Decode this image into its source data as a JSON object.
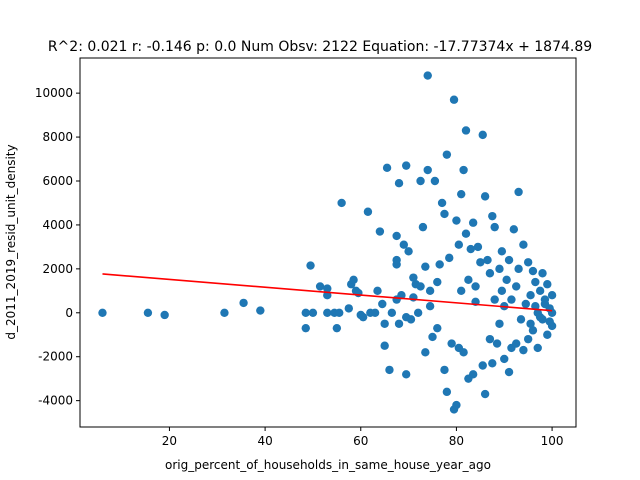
{
  "chart_data": {
    "type": "scatter",
    "title": "R^2: 0.021 r: -0.146 p: 0.0 Num Obsv: 2122 Equation: -17.77374x + 1874.89",
    "xlabel": "orig_percent_of_households_in_same_house_year_ago",
    "ylabel": "d_2011_2019_resid_unit_density",
    "xlim": [
      1.3,
      105.0
    ],
    "ylim": [
      -5200,
      11600
    ],
    "x_ticks": [
      20,
      40,
      60,
      80,
      100
    ],
    "y_ticks": [
      -4000,
      -2000,
      0,
      2000,
      4000,
      6000,
      8000,
      10000
    ],
    "grid": false,
    "legend": "none",
    "colors": {
      "points": "#1f77b4",
      "fit_line": "#ff0000"
    },
    "series": [
      {
        "values": [
          [
            6,
            0
          ],
          [
            15.5,
            0
          ],
          [
            19,
            -100
          ],
          [
            31.5,
            0
          ],
          [
            35.5,
            450
          ],
          [
            39,
            100
          ],
          [
            48.5,
            0
          ],
          [
            48.5,
            -700
          ],
          [
            49.5,
            2150
          ],
          [
            50,
            0
          ],
          [
            51.5,
            1200
          ],
          [
            53,
            1100
          ],
          [
            53,
            800
          ],
          [
            53,
            0
          ],
          [
            54.5,
            0
          ],
          [
            55,
            -700
          ],
          [
            55.5,
            0
          ],
          [
            56,
            5000
          ],
          [
            57.5,
            200
          ],
          [
            58,
            1300
          ],
          [
            58.5,
            1500
          ],
          [
            59,
            1000
          ],
          [
            59.5,
            900
          ],
          [
            60,
            -100
          ],
          [
            60.5,
            -200
          ],
          [
            61.5,
            4600
          ],
          [
            62,
            0
          ],
          [
            63,
            0
          ],
          [
            63.5,
            1000
          ],
          [
            64,
            3700
          ],
          [
            64.5,
            400
          ],
          [
            65,
            -500
          ],
          [
            65,
            -1500
          ],
          [
            65.5,
            6600
          ],
          [
            66,
            -2600
          ],
          [
            66.5,
            0
          ],
          [
            67.5,
            600
          ],
          [
            67.5,
            2200
          ],
          [
            67.5,
            2400
          ],
          [
            67.5,
            3500
          ],
          [
            68,
            5900
          ],
          [
            68,
            -500
          ],
          [
            68.5,
            800
          ],
          [
            69,
            3100
          ],
          [
            69.5,
            -2800
          ],
          [
            69.5,
            6700
          ],
          [
            69.5,
            -200
          ],
          [
            70,
            2800
          ],
          [
            70.5,
            -300
          ],
          [
            71,
            700
          ],
          [
            71,
            1600
          ],
          [
            71.5,
            1300
          ],
          [
            72,
            0
          ],
          [
            72.5,
            6000
          ],
          [
            72.5,
            1200
          ],
          [
            73,
            3900
          ],
          [
            73.5,
            -1800
          ],
          [
            73.5,
            2100
          ],
          [
            74,
            10800
          ],
          [
            74,
            6500
          ],
          [
            74.5,
            300
          ],
          [
            74.5,
            1000
          ],
          [
            75,
            -1100
          ],
          [
            75.5,
            6000
          ],
          [
            76,
            1400
          ],
          [
            76,
            -700
          ],
          [
            76.5,
            2200
          ],
          [
            77,
            5000
          ],
          [
            77.5,
            -2600
          ],
          [
            77.5,
            4500
          ],
          [
            78,
            7200
          ],
          [
            78,
            -3600
          ],
          [
            78.5,
            2500
          ],
          [
            79,
            -1400
          ],
          [
            79.5,
            -4400
          ],
          [
            79.5,
            9700
          ],
          [
            80,
            -4200
          ],
          [
            80,
            4200
          ],
          [
            80.5,
            3100
          ],
          [
            80.5,
            -1600
          ],
          [
            81,
            5400
          ],
          [
            81,
            1000
          ],
          [
            81.5,
            6500
          ],
          [
            81.5,
            -1800
          ],
          [
            82,
            3600
          ],
          [
            82,
            8300
          ],
          [
            82.5,
            -3000
          ],
          [
            82.5,
            1500
          ],
          [
            83,
            2900
          ],
          [
            83.5,
            -2800
          ],
          [
            83.5,
            4100
          ],
          [
            84,
            1200
          ],
          [
            84,
            500
          ],
          [
            84.5,
            3000
          ],
          [
            85,
            2300
          ],
          [
            85.5,
            -2400
          ],
          [
            85.5,
            8100
          ],
          [
            86,
            -3700
          ],
          [
            86,
            5300
          ],
          [
            86.5,
            2400
          ],
          [
            87,
            -1200
          ],
          [
            87,
            1800
          ],
          [
            87.5,
            4400
          ],
          [
            87.5,
            -2300
          ],
          [
            88,
            3900
          ],
          [
            88,
            600
          ],
          [
            88.5,
            -1400
          ],
          [
            89,
            2000
          ],
          [
            89,
            -500
          ],
          [
            89.5,
            2800
          ],
          [
            89.5,
            1000
          ],
          [
            90,
            300
          ],
          [
            90,
            -2100
          ],
          [
            90.5,
            1500
          ],
          [
            91,
            -2700
          ],
          [
            91,
            2400
          ],
          [
            91.5,
            -1600
          ],
          [
            91.5,
            600
          ],
          [
            92,
            3800
          ],
          [
            92.5,
            1200
          ],
          [
            92.5,
            -1400
          ],
          [
            93,
            2000
          ],
          [
            93,
            5500
          ],
          [
            93.5,
            -300
          ],
          [
            94,
            3100
          ],
          [
            94,
            -1700
          ],
          [
            94.5,
            400
          ],
          [
            95,
            -1200
          ],
          [
            95,
            2300
          ],
          [
            95.5,
            800
          ],
          [
            96,
            1900
          ],
          [
            96,
            -800
          ],
          [
            96.5,
            1400
          ],
          [
            97,
            0
          ],
          [
            97,
            -1600
          ],
          [
            97.5,
            1000
          ],
          [
            98,
            1800
          ],
          [
            98,
            -300
          ],
          [
            98.5,
            600
          ],
          [
            99,
            -1000
          ],
          [
            99,
            1300
          ],
          [
            99.5,
            200
          ],
          [
            100,
            -600
          ],
          [
            100,
            800
          ],
          [
            100,
            0
          ],
          [
            99.5,
            -400
          ],
          [
            98.5,
            400
          ],
          [
            97.5,
            -200
          ],
          [
            96.5,
            300
          ],
          [
            95.5,
            -500
          ]
        ]
      }
    ],
    "fit_line": {
      "slope": -17.77374,
      "intercept": 1874.89,
      "x_range": [
        6,
        100
      ]
    }
  }
}
